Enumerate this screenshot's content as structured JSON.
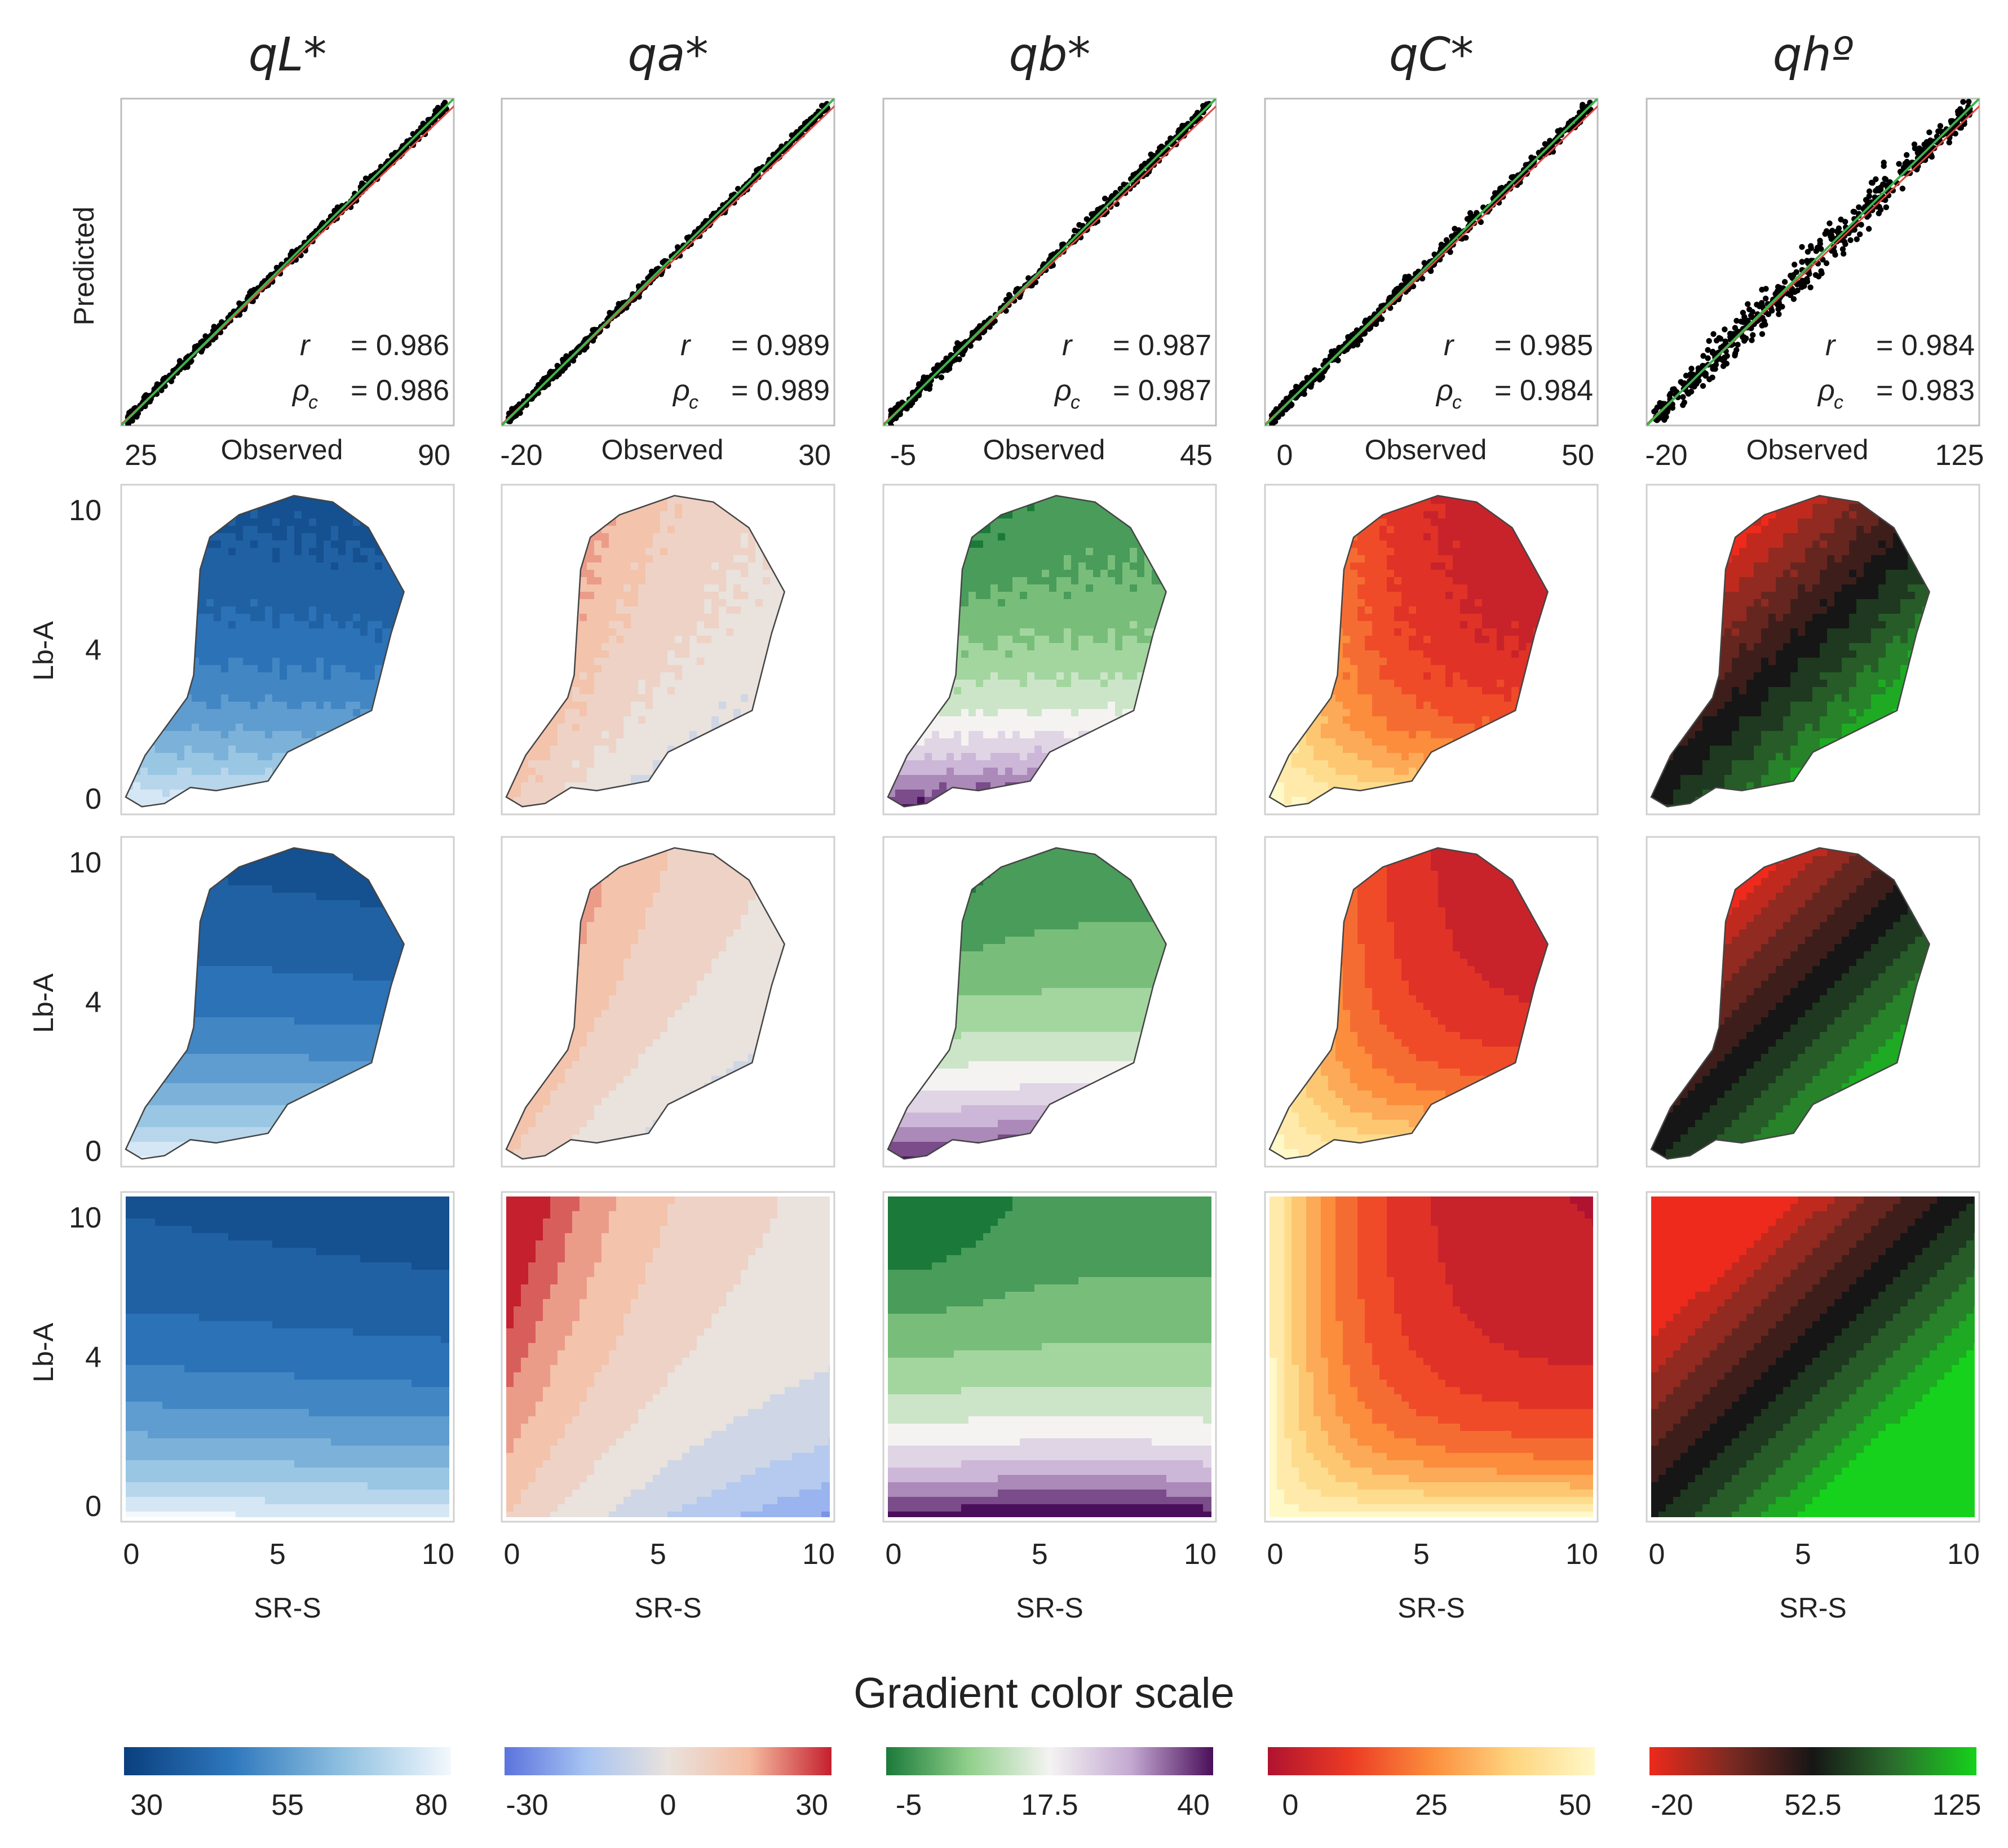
{
  "figure": {
    "scale_title": "Gradient color scale",
    "ylabel_scatter": "Predicted",
    "xlabel_scatter": "Observed",
    "ylabel_maps": "Lb-A",
    "xlabel_maps": "SR-S",
    "map_y_ticks": [
      "0",
      "4",
      "10"
    ],
    "map_x_ticks": [
      "0",
      "5",
      "10"
    ]
  },
  "chart_data": [
    {
      "type": "scatter",
      "variable": "qL*",
      "title": "qL*",
      "xlabel": "Observed",
      "ylabel": "Predicted",
      "xlim": [
        25,
        90
      ],
      "ylim": [
        25,
        90
      ],
      "x_tick_labels": [
        "25",
        "90"
      ],
      "r_label": "r",
      "r_value": "= 0.986",
      "rho_label": "ρc",
      "rho_value": "= 0.986",
      "r": 0.986,
      "rho_c": 0.986,
      "lines": [
        "1:1 line (red)",
        "fit line (green)"
      ],
      "color_scale": {
        "colors": [
          "#0a3f7d",
          "#2f78bd",
          "#8fc0e0",
          "#f3f8fd"
        ],
        "ticks": [
          "30",
          "55",
          "80"
        ]
      }
    },
    {
      "type": "scatter",
      "variable": "qa*",
      "title": "qa*",
      "xlabel": "Observed",
      "ylabel": "Predicted",
      "xlim": [
        -20,
        30
      ],
      "ylim": [
        -20,
        30
      ],
      "x_tick_labels": [
        "-20",
        "30"
      ],
      "r_label": "r",
      "r_value": "= 0.989",
      "rho_label": "ρc",
      "rho_value": "= 0.989",
      "r": 0.989,
      "rho_c": 0.989,
      "lines": [
        "1:1 line (red)",
        "fit line (green)"
      ],
      "color_scale": {
        "colors": [
          "#5b73dd",
          "#a8c4f2",
          "#e9e2dd",
          "#f5bba0",
          "#c4202e"
        ],
        "ticks": [
          "-30",
          "0",
          "30"
        ]
      }
    },
    {
      "type": "scatter",
      "variable": "qb*",
      "title": "qb*",
      "xlabel": "Observed",
      "ylabel": "Predicted",
      "xlim": [
        -5,
        45
      ],
      "ylim": [
        -5,
        45
      ],
      "x_tick_labels": [
        "-5",
        "45"
      ],
      "r_label": "r",
      "r_value": "= 0.987",
      "rho_label": "ρc",
      "rho_value": "= 0.987",
      "r": 0.987,
      "rho_c": 0.987,
      "lines": [
        "1:1 line (red)",
        "fit line (green)"
      ],
      "color_scale": {
        "colors": [
          "#1b7a3a",
          "#8fcf8a",
          "#f4f3f2",
          "#c3a8d1",
          "#4a0f5a"
        ],
        "ticks": [
          "-5",
          "17.5",
          "40"
        ]
      }
    },
    {
      "type": "scatter",
      "variable": "qC*",
      "title": "qC*",
      "xlabel": "Observed",
      "ylabel": "Predicted",
      "xlim": [
        0,
        50
      ],
      "ylim": [
        0,
        50
      ],
      "x_tick_labels": [
        "0",
        "50"
      ],
      "r_label": "r",
      "r_value": "= 0.985",
      "rho_label": "ρc",
      "rho_value": "= 0.984",
      "r": 0.985,
      "rho_c": 0.984,
      "lines": [
        "1:1 line (red)",
        "fit line (green)"
      ],
      "color_scale": {
        "colors": [
          "#b01330",
          "#ec3a24",
          "#fb8d3c",
          "#fed580",
          "#fff8c8"
        ],
        "ticks": [
          "0",
          "25",
          "50"
        ]
      }
    },
    {
      "type": "scatter",
      "variable": "qhº",
      "title": "qhº",
      "xlabel": "Observed",
      "ylabel": "Predicted",
      "xlim": [
        -20,
        125
      ],
      "ylim": [
        -20,
        125
      ],
      "x_tick_labels": [
        "-20",
        "125"
      ],
      "r_label": "r",
      "r_value": "= 0.984",
      "rho_label": "ρc",
      "rho_value": "= 0.983",
      "r": 0.984,
      "rho_c": 0.983,
      "lines": [
        "1:1 line (red)",
        "fit line (green)"
      ],
      "color_scale": {
        "colors": [
          "#ee2a1c",
          "#7a2a22",
          "#161616",
          "#2b6e2d",
          "#16d21c"
        ],
        "ticks": [
          "-20",
          "52.5",
          "125"
        ]
      }
    }
  ]
}
